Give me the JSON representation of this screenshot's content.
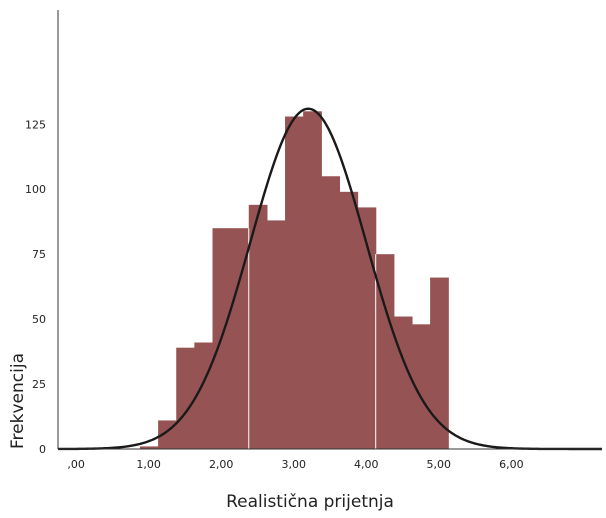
{
  "chart_data": {
    "type": "bar",
    "title": "",
    "xlabel": "Realistična prijetnja",
    "ylabel": "Frekvencija",
    "x_ticks": [
      {
        "value": 0,
        "label": ",00"
      },
      {
        "value": 1,
        "label": "1,00"
      },
      {
        "value": 2,
        "label": "2,00"
      },
      {
        "value": 3,
        "label": "3,00"
      },
      {
        "value": 4,
        "label": "4,00"
      },
      {
        "value": 5,
        "label": "5,00"
      },
      {
        "value": 6,
        "label": "6,00"
      }
    ],
    "y_ticks": [
      {
        "value": 0,
        "label": "0"
      },
      {
        "value": 25,
        "label": "25"
      },
      {
        "value": 50,
        "label": "50"
      },
      {
        "value": 75,
        "label": "75"
      },
      {
        "value": 100,
        "label": "100"
      },
      {
        "value": 125,
        "label": "125"
      }
    ],
    "xlim": [
      -0.25,
      7.25
    ],
    "ylim": [
      0,
      169
    ],
    "bin_width": 0.25,
    "bins": [
      {
        "start": 0.88,
        "count": 1
      },
      {
        "start": 1.13,
        "count": 11
      },
      {
        "start": 1.38,
        "count": 39
      },
      {
        "start": 1.63,
        "count": 41
      },
      {
        "start": 1.88,
        "count": 85
      },
      {
        "start": 2.13,
        "count": 85
      },
      {
        "start": 2.38,
        "count": 94
      },
      {
        "start": 2.63,
        "count": 88
      },
      {
        "start": 2.88,
        "count": 128
      },
      {
        "start": 3.13,
        "count": 130
      },
      {
        "start": 3.38,
        "count": 105
      },
      {
        "start": 3.63,
        "count": 99
      },
      {
        "start": 3.88,
        "count": 93
      },
      {
        "start": 4.13,
        "count": 75
      },
      {
        "start": 4.38,
        "count": 51
      },
      {
        "start": 4.63,
        "count": 48
      },
      {
        "start": 4.88,
        "count": 66
      }
    ],
    "normal_curve": {
      "mean": 3.2,
      "sd": 0.8,
      "peak": 131
    },
    "bar_color": "#955453",
    "curve_color": "#1a1a1a",
    "grid": false,
    "legend": "none"
  }
}
